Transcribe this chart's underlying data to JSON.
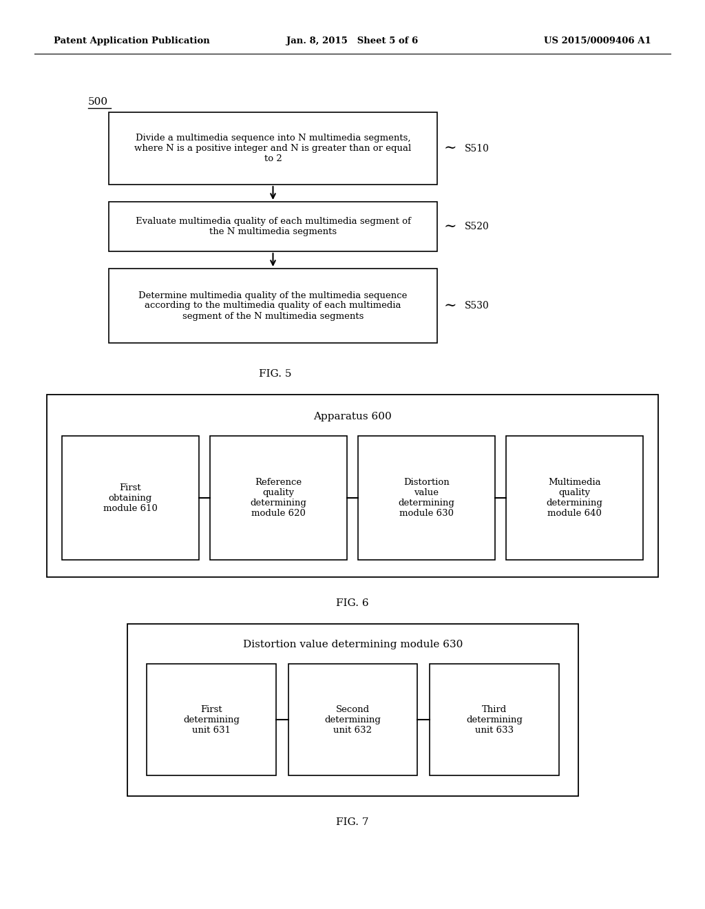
{
  "background_color": "#ffffff",
  "header": {
    "left": "Patent Application Publication",
    "center": "Jan. 8, 2015   Sheet 5 of 6",
    "right": "US 2015/0009406 A1"
  },
  "fig5": {
    "label": "500",
    "caption": "FIG. 5",
    "steps": [
      {
        "id": "S510",
        "text": "Divide a multimedia sequence into N multimedia segments,\nwhere N is a positive integer and N is greater than or equal\nto 2"
      },
      {
        "id": "S520",
        "text": "Evaluate multimedia quality of each multimedia segment of\nthe N multimedia segments"
      },
      {
        "id": "S530",
        "text": "Determine multimedia quality of the multimedia sequence\naccording to the multimedia quality of each multimedia\nsegment of the N multimedia segments"
      }
    ]
  },
  "fig6": {
    "outer_label": "Apparatus 600",
    "caption": "FIG. 6",
    "modules": [
      {
        "text": "First\nobtaining\nmodule 610"
      },
      {
        "text": "Reference\nquality\ndetermining\nmodule 620"
      },
      {
        "text": "Distortion\nvalue\ndetermining\nmodule 630"
      },
      {
        "text": "Multimedia\nquality\ndetermining\nmodule 640"
      }
    ]
  },
  "fig7": {
    "outer_label": "Distortion value determining module 630",
    "caption": "FIG. 7",
    "units": [
      {
        "text": "First\ndetermining\nunit 631"
      },
      {
        "text": "Second\ndetermining\nunit 632"
      },
      {
        "text": "Third\ndetermining\nunit 633"
      }
    ]
  }
}
